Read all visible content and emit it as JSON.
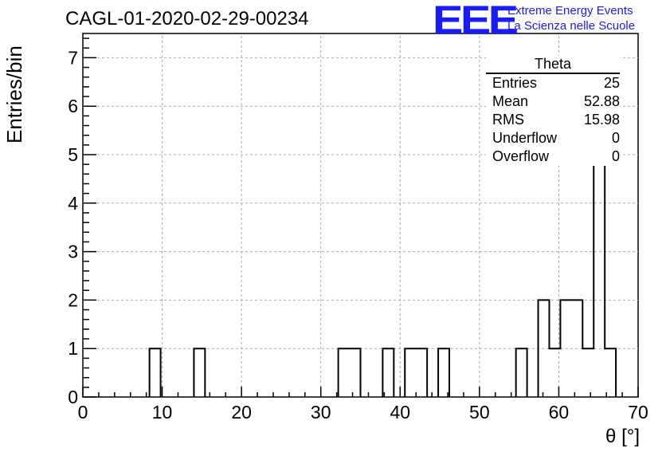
{
  "title": "CAGL-01-2020-02-29-00234",
  "logo": {
    "mark": "EEE",
    "line1": "Extreme Energy Events",
    "line2": "La Scienza nelle Scuole",
    "color": "#1a1aff"
  },
  "stats": {
    "name": "Theta",
    "rows": [
      {
        "label": "Entries",
        "value": "25"
      },
      {
        "label": "Mean",
        "value": "52.88"
      },
      {
        "label": "RMS",
        "value": "15.98"
      },
      {
        "label": "Underflow",
        "value": "0"
      },
      {
        "label": "Overflow",
        "value": "0"
      }
    ]
  },
  "chart_data": {
    "type": "bar",
    "subtype": "step-histogram",
    "xlabel": "θ [°]",
    "ylabel": "Entries/bin",
    "xlim": [
      0,
      70
    ],
    "ylim": [
      0,
      7.5
    ],
    "x_ticks": [
      0,
      10,
      20,
      30,
      40,
      50,
      60,
      70
    ],
    "y_ticks": [
      0,
      1,
      2,
      3,
      4,
      5,
      6,
      7
    ],
    "grid": true,
    "bin_width": 1.4,
    "bins": [
      {
        "x": 8.4,
        "count": 1
      },
      {
        "x": 14.0,
        "count": 1
      },
      {
        "x": 32.2,
        "count": 1
      },
      {
        "x": 33.6,
        "count": 1
      },
      {
        "x": 37.8,
        "count": 1
      },
      {
        "x": 40.6,
        "count": 1
      },
      {
        "x": 42.0,
        "count": 1
      },
      {
        "x": 44.8,
        "count": 1
      },
      {
        "x": 54.6,
        "count": 1
      },
      {
        "x": 57.4,
        "count": 2
      },
      {
        "x": 58.8,
        "count": 1
      },
      {
        "x": 60.2,
        "count": 2
      },
      {
        "x": 61.6,
        "count": 2
      },
      {
        "x": 63.0,
        "count": 1
      },
      {
        "x": 64.4,
        "count": 7
      },
      {
        "x": 65.8,
        "count": 1
      }
    ]
  }
}
